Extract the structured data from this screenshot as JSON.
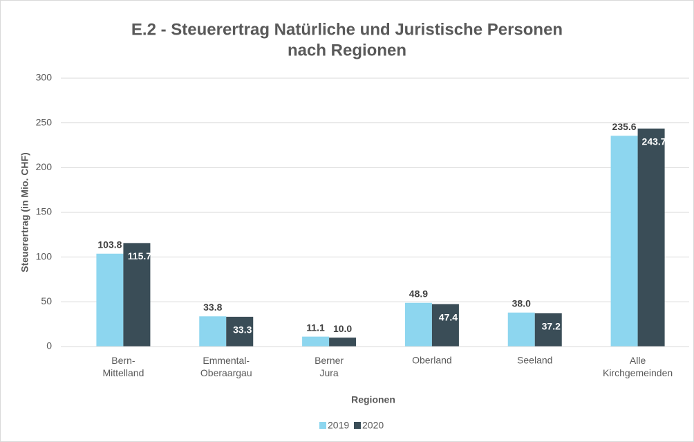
{
  "chart_data": {
    "type": "bar",
    "title": [
      "E.2 - Steuerertrag Natürliche und Juristische Personen",
      "nach Regionen"
    ],
    "x_label": "Regionen",
    "y_label": "Steuerertrag (in Mio. CHF)",
    "categories": [
      "Bern-Mittelland",
      "Emmental-Oberaargau",
      "Berner Jura",
      "Oberland",
      "Seeland",
      "Alle Kirchgemeinden"
    ],
    "series": [
      {
        "name": "2019",
        "color": "#8dd6ef",
        "values": [
          103.8,
          33.8,
          11.1,
          48.9,
          38.0,
          235.6
        ],
        "value_labels": [
          "103.8",
          "33.8",
          "11.1",
          "48.9",
          "38.0",
          "235.6"
        ]
      },
      {
        "name": "2020",
        "color": "#3a4d57",
        "values": [
          115.7,
          33.3,
          10.0,
          47.4,
          37.2,
          243.7
        ],
        "value_labels": [
          "115.7",
          "33.3",
          "10.0",
          "47.4",
          "37.2",
          "243.7"
        ]
      }
    ],
    "ylim": [
      0,
      300
    ],
    "yticks": [
      0,
      50,
      100,
      150,
      200,
      250,
      300
    ],
    "grid": true,
    "legend": "bottom"
  }
}
